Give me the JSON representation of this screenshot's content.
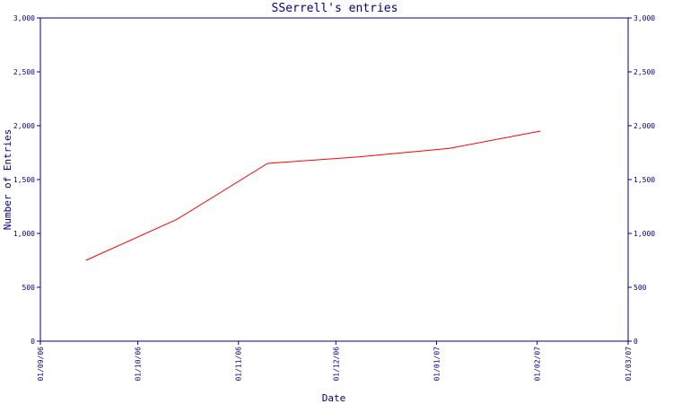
{
  "chart_data": {
    "type": "line",
    "title": "SSerrell's entries",
    "xlabel": "Date",
    "ylabel": "Number of Entries",
    "xlim": [
      "2006-09-01",
      "2007-03-01"
    ],
    "ylim": [
      0,
      3000
    ],
    "x_tick_labels": [
      "01/09/06",
      "01/10/06",
      "01/11/06",
      "01/12/06",
      "01/01/07",
      "01/02/07",
      "01/03/07"
    ],
    "y_tick_labels": [
      "0",
      "500",
      "1,000",
      "1,500",
      "2,000",
      "2,500",
      "3,000"
    ],
    "y_ticks": [
      0,
      500,
      1000,
      1500,
      2000,
      2500,
      3000
    ],
    "y_axis_right": true,
    "grid": false,
    "series": [
      {
        "color": "#ff0000",
        "x": [
          "2006-09-15",
          "2006-10-13",
          "2006-11-10",
          "2006-12-08",
          "2007-01-05",
          "2007-02-02"
        ],
        "values": [
          750,
          1130,
          1650,
          1710,
          1790,
          1950
        ]
      }
    ]
  }
}
